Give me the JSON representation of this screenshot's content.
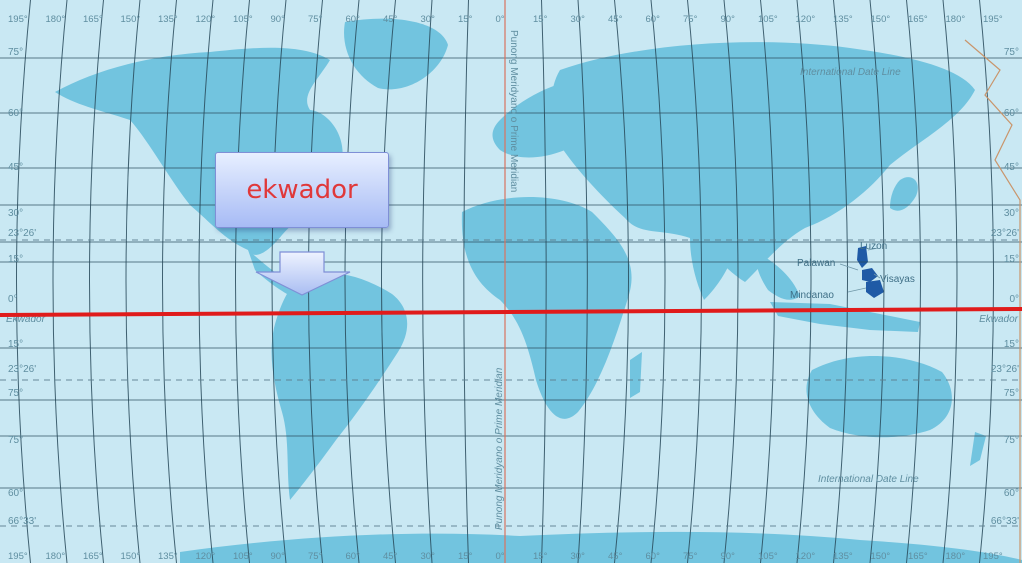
{
  "lon_top": [
    "195°",
    "180°",
    "165°",
    "150°",
    "135°",
    "120°",
    "105°",
    "90°",
    "75°",
    "60°",
    "45°",
    "30°",
    "15°",
    "0°",
    "15°",
    "30°",
    "45°",
    "60°",
    "75°",
    "90°",
    "105°",
    "120°",
    "135°",
    "150°",
    "165°",
    "180°",
    "195°"
  ],
  "lon_bottom": [
    "195°",
    "180°",
    "165°",
    "150°",
    "135°",
    "120°",
    "105°",
    "90°",
    "75°",
    "60°",
    "45°",
    "30°",
    "15°",
    "0°",
    "15°",
    "30°",
    "45°",
    "60°",
    "75°",
    "90°",
    "105°",
    "120°",
    "135°",
    "150°",
    "165°",
    "180°",
    "195°"
  ],
  "lat_left": [
    "75°",
    "60°",
    "45°",
    "30°",
    "23°26'",
    "15°",
    "0°",
    "15°",
    "23°26'",
    "75°",
    "75°",
    "60°",
    "66°33'"
  ],
  "lat_right": [
    "75°",
    "60°",
    "45°",
    "30°",
    "23°26'",
    "15°",
    "0°",
    "15°",
    "23°26'",
    "75°",
    "75°",
    "60°",
    "66°33'"
  ],
  "equator_left_label": "Ekwador",
  "equator_right_label": "Ekwador",
  "prime_meridian_top": "Punong Meridyano o Prime Meridian",
  "prime_meridian_bottom": "Punong Meridyano o Prime Meridian",
  "date_line_top": "International Date Line",
  "date_line_bottom": "International Date Line",
  "places": [
    "Luzon",
    "Palawan",
    "Visayas",
    "Mindanao"
  ],
  "callout_text": "ekwador",
  "colors": {
    "ocean": "#c9e8f3",
    "land": "#72c4df",
    "grid": "#27495a",
    "equator": "#e01b1b",
    "callout_text": "#e0383a"
  }
}
